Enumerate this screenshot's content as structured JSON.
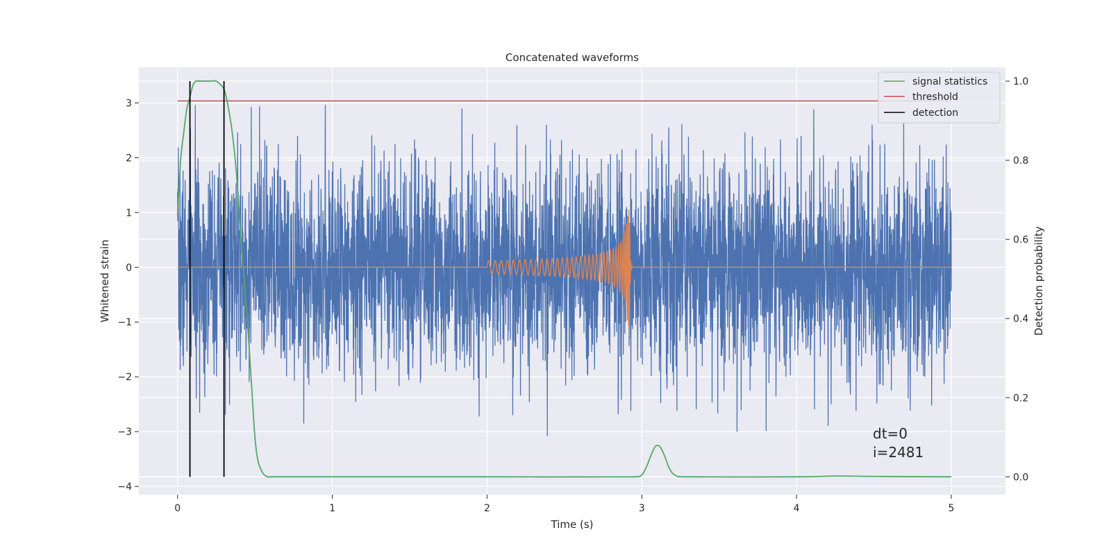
{
  "chart_data": {
    "type": "line",
    "title": "Concatenated waveforms",
    "xlabel": "Time (s)",
    "ylabel": "Whitened strain",
    "y2label": "Detection probability",
    "xlim": [
      -0.25,
      5.35
    ],
    "ylim": [
      -4.15,
      3.65
    ],
    "y2lim": [
      -0.045,
      1.035
    ],
    "xticks": [
      0,
      1,
      2,
      3,
      4,
      5
    ],
    "yticks": [
      -4,
      -3,
      -2,
      -1,
      0,
      1,
      2,
      3
    ],
    "y2ticks": [
      0.0,
      0.2,
      0.4,
      0.6,
      0.8,
      1.0
    ],
    "xtick_labels": [
      "0",
      "1",
      "2",
      "3",
      "4",
      "5"
    ],
    "ytick_labels": [
      "−4",
      "−3",
      "−2",
      "−1",
      "0",
      "1",
      "2",
      "3"
    ],
    "y2tick_labels": [
      "0.0",
      "0.2",
      "0.4",
      "0.6",
      "0.8",
      "1.0"
    ],
    "grid": true,
    "legend_position": "top-right",
    "colors": {
      "strain": "#4c72b0",
      "waveform": "#dd8452",
      "signal_statistics": "#55a868",
      "threshold": "#c44e52",
      "detection": "#000000",
      "background": "#eaeaf2"
    },
    "series": [
      {
        "name": "",
        "axis": "left",
        "kind": "noise",
        "x_range": [
          0,
          5
        ],
        "samples": 4096,
        "sigma": 0.95,
        "seed": 7
      },
      {
        "name": "",
        "axis": "left",
        "kind": "chirp",
        "x_range": [
          0,
          5
        ],
        "chirp_start": 2.0,
        "merger": 2.92,
        "amp_start": 0.12,
        "amp_peak": 1.35
      },
      {
        "name": "signal statistics",
        "axis": "right",
        "x": [
          0.0,
          0.02,
          0.04,
          0.06,
          0.08,
          0.1,
          0.12,
          0.15,
          0.2,
          0.25,
          0.28,
          0.3,
          0.32,
          0.35,
          0.38,
          0.4,
          0.42,
          0.45,
          0.48,
          0.5,
          0.52,
          0.55,
          0.58,
          0.6,
          1.0,
          2.0,
          2.95,
          3.0,
          3.03,
          3.06,
          3.09,
          3.12,
          3.15,
          3.18,
          3.22,
          3.3,
          4.0,
          4.25,
          4.5,
          5.0
        ],
        "y": [
          0.66,
          0.8,
          0.87,
          0.93,
          0.96,
          0.99,
          1.0,
          1.0,
          1.0,
          1.0,
          0.99,
          0.98,
          0.95,
          0.88,
          0.77,
          0.65,
          0.55,
          0.4,
          0.22,
          0.1,
          0.04,
          0.01,
          0.0,
          0.0,
          0.0,
          0.0,
          0.0,
          0.005,
          0.025,
          0.055,
          0.078,
          0.075,
          0.05,
          0.02,
          0.003,
          0.0,
          0.0,
          0.002,
          0.001,
          0.0
        ]
      },
      {
        "name": "threshold",
        "axis": "right",
        "x": [
          0.0,
          5.0
        ],
        "y": [
          0.95,
          0.95
        ]
      },
      {
        "name": "detection",
        "axis": "right",
        "vlines": [
          0.08,
          0.3
        ],
        "y_range": [
          0.0,
          1.0
        ]
      }
    ],
    "annotations": [
      "dt=0",
      "i=2481"
    ]
  }
}
